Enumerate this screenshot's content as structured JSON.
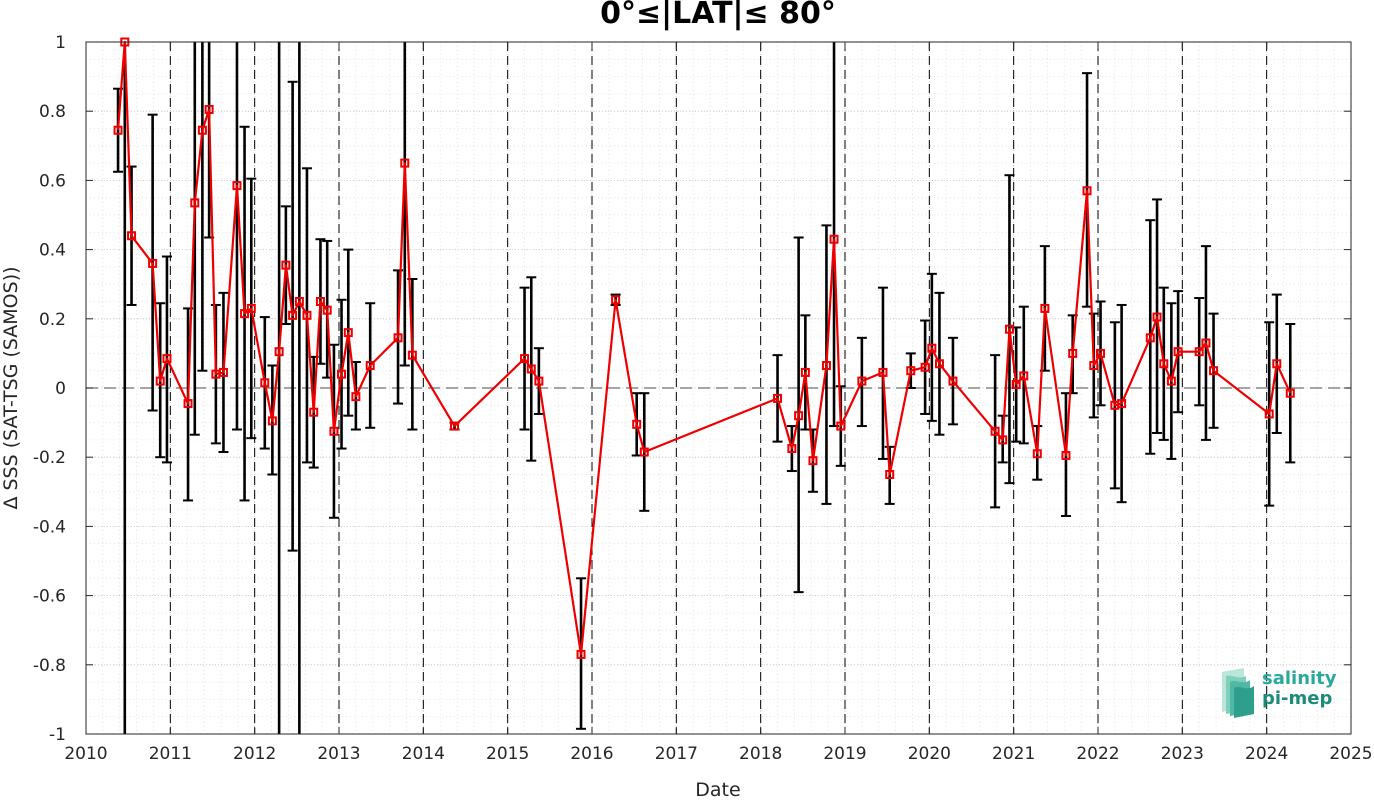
{
  "chart_data": {
    "type": "line",
    "title": "0°≤|LAT|≤ 80°",
    "xlabel": "Date",
    "ylabel": "Δ SSS (SAT-TSG (SAMOS))",
    "xlim": [
      2010,
      2025
    ],
    "ylim": [
      -1,
      1
    ],
    "x_ticks": [
      "2010",
      "2011",
      "2012",
      "2013",
      "2014",
      "2015",
      "2016",
      "2017",
      "2018",
      "2019",
      "2020",
      "2021",
      "2022",
      "2023",
      "2024",
      "2025"
    ],
    "y_ticks": [
      "-1",
      "-0.8",
      "-0.6",
      "-0.4",
      "-0.2",
      "0",
      "0.2",
      "0.4",
      "0.6",
      "0.8",
      "1"
    ],
    "grid": true,
    "zero_line": {
      "y": 0,
      "style": "dashed",
      "color": "#6f6f6f"
    },
    "year_boundaries": [
      2011,
      2012,
      2013,
      2014,
      2015,
      2016,
      2017,
      2018,
      2019,
      2020,
      2021,
      2022,
      2023,
      2024
    ],
    "series": [
      {
        "color": "#ee0000",
        "marker": "square",
        "errorbar_color": "#000000",
        "points": [
          {
            "x": 2010.38,
            "y": 0.745,
            "lo": 0.625,
            "hi": 0.865
          },
          {
            "x": 2010.46,
            "y": 1.0,
            "lo": -1.0,
            "hi": 1.0
          },
          {
            "x": 2010.54,
            "y": 0.44,
            "lo": 0.24,
            "hi": 0.64
          },
          {
            "x": 2010.79,
            "y": 0.36,
            "lo": -0.065,
            "hi": 0.79
          },
          {
            "x": 2010.88,
            "y": 0.02,
            "lo": -0.2,
            "hi": 0.245
          },
          {
            "x": 2010.96,
            "y": 0.085,
            "lo": -0.215,
            "hi": 0.38
          },
          {
            "x": 2011.21,
            "y": -0.045,
            "lo": -0.325,
            "hi": 0.23
          },
          {
            "x": 2011.29,
            "y": 0.535,
            "lo": -0.135,
            "hi": 1.0
          },
          {
            "x": 2011.38,
            "y": 0.745,
            "lo": 0.05,
            "hi": 1.0
          },
          {
            "x": 2011.46,
            "y": 0.805,
            "lo": 0.435,
            "hi": 1.0
          },
          {
            "x": 2011.54,
            "y": 0.04,
            "lo": -0.16,
            "hi": 0.24
          },
          {
            "x": 2011.63,
            "y": 0.045,
            "lo": -0.185,
            "hi": 0.275
          },
          {
            "x": 2011.79,
            "y": 0.585,
            "lo": -0.12,
            "hi": 1.0
          },
          {
            "x": 2011.88,
            "y": 0.215,
            "lo": -0.325,
            "hi": 0.755
          },
          {
            "x": 2011.96,
            "y": 0.23,
            "lo": -0.145,
            "hi": 0.605
          },
          {
            "x": 2012.12,
            "y": 0.015,
            "lo": -0.175,
            "hi": 0.205
          },
          {
            "x": 2012.21,
            "y": -0.095,
            "lo": -0.25,
            "hi": 0.065
          },
          {
            "x": 2012.29,
            "y": 0.105,
            "lo": -1.0,
            "hi": 1.0
          },
          {
            "x": 2012.37,
            "y": 0.355,
            "lo": 0.185,
            "hi": 0.525
          },
          {
            "x": 2012.45,
            "y": 0.21,
            "lo": -0.47,
            "hi": 0.885
          },
          {
            "x": 2012.53,
            "y": 0.25,
            "lo": -1.0,
            "hi": 1.0
          },
          {
            "x": 2012.62,
            "y": 0.21,
            "lo": -0.215,
            "hi": 0.635
          },
          {
            "x": 2012.7,
            "y": -0.07,
            "lo": -0.23,
            "hi": 0.09
          },
          {
            "x": 2012.78,
            "y": 0.25,
            "lo": 0.07,
            "hi": 0.43
          },
          {
            "x": 2012.86,
            "y": 0.225,
            "lo": 0.03,
            "hi": 0.425
          },
          {
            "x": 2012.94,
            "y": -0.125,
            "lo": -0.375,
            "hi": 0.125
          },
          {
            "x": 2013.03,
            "y": 0.04,
            "lo": -0.175,
            "hi": 0.255
          },
          {
            "x": 2013.11,
            "y": 0.16,
            "lo": -0.08,
            "hi": 0.4
          },
          {
            "x": 2013.2,
            "y": -0.025,
            "lo": -0.12,
            "hi": 0.075
          },
          {
            "x": 2013.37,
            "y": 0.065,
            "lo": -0.115,
            "hi": 0.245
          },
          {
            "x": 2013.7,
            "y": 0.145,
            "lo": -0.045,
            "hi": 0.34
          },
          {
            "x": 2013.78,
            "y": 0.65,
            "lo": 0.065,
            "hi": 1.0
          },
          {
            "x": 2013.87,
            "y": 0.095,
            "lo": -0.12,
            "hi": 0.315
          },
          {
            "x": 2014.37,
            "y": -0.11,
            "lo": -0.12,
            "hi": -0.1
          },
          {
            "x": 2015.2,
            "y": 0.085,
            "lo": -0.12,
            "hi": 0.29
          },
          {
            "x": 2015.28,
            "y": 0.055,
            "lo": -0.21,
            "hi": 0.32
          },
          {
            "x": 2015.37,
            "y": 0.02,
            "lo": -0.075,
            "hi": 0.115
          },
          {
            "x": 2015.87,
            "y": -0.77,
            "lo": -0.985,
            "hi": -0.55
          },
          {
            "x": 2016.28,
            "y": 0.255,
            "lo": 0.24,
            "hi": 0.27
          },
          {
            "x": 2016.53,
            "y": -0.105,
            "lo": -0.195,
            "hi": -0.015
          },
          {
            "x": 2016.62,
            "y": -0.185,
            "lo": -0.355,
            "hi": -0.015
          },
          {
            "x": 2018.2,
            "y": -0.03,
            "lo": -0.155,
            "hi": 0.095
          },
          {
            "x": 2018.37,
            "y": -0.175,
            "lo": -0.24,
            "hi": -0.11
          },
          {
            "x": 2018.45,
            "y": -0.08,
            "lo": -0.59,
            "hi": 0.435
          },
          {
            "x": 2018.53,
            "y": 0.045,
            "lo": -0.12,
            "hi": 0.21
          },
          {
            "x": 2018.62,
            "y": -0.21,
            "lo": -0.3,
            "hi": -0.12
          },
          {
            "x": 2018.78,
            "y": 0.065,
            "lo": -0.335,
            "hi": 0.47
          },
          {
            "x": 2018.87,
            "y": 0.43,
            "lo": -0.11,
            "hi": 1.0
          },
          {
            "x": 2018.95,
            "y": -0.11,
            "lo": -0.225,
            "hi": 0.005
          },
          {
            "x": 2019.2,
            "y": 0.02,
            "lo": -0.11,
            "hi": 0.145
          },
          {
            "x": 2019.45,
            "y": 0.045,
            "lo": -0.205,
            "hi": 0.29
          },
          {
            "x": 2019.53,
            "y": -0.25,
            "lo": -0.335,
            "hi": -0.17
          },
          {
            "x": 2019.78,
            "y": 0.05,
            "lo": 0.0,
            "hi": 0.1
          },
          {
            "x": 2019.95,
            "y": 0.06,
            "lo": -0.075,
            "hi": 0.195
          },
          {
            "x": 2020.03,
            "y": 0.115,
            "lo": -0.095,
            "hi": 0.33
          },
          {
            "x": 2020.12,
            "y": 0.07,
            "lo": -0.135,
            "hi": 0.275
          },
          {
            "x": 2020.28,
            "y": 0.02,
            "lo": -0.105,
            "hi": 0.145
          },
          {
            "x": 2020.78,
            "y": -0.125,
            "lo": -0.345,
            "hi": 0.095
          },
          {
            "x": 2020.87,
            "y": -0.15,
            "lo": -0.215,
            "hi": -0.08
          },
          {
            "x": 2020.95,
            "y": 0.17,
            "lo": -0.275,
            "hi": 0.615
          },
          {
            "x": 2021.03,
            "y": 0.01,
            "lo": -0.155,
            "hi": 0.175
          },
          {
            "x": 2021.12,
            "y": 0.035,
            "lo": -0.16,
            "hi": 0.235
          },
          {
            "x": 2021.28,
            "y": -0.19,
            "lo": -0.265,
            "hi": -0.11
          },
          {
            "x": 2021.37,
            "y": 0.23,
            "lo": 0.05,
            "hi": 0.41
          },
          {
            "x": 2021.62,
            "y": -0.195,
            "lo": -0.37,
            "hi": -0.015
          },
          {
            "x": 2021.7,
            "y": 0.1,
            "lo": -0.015,
            "hi": 0.21
          },
          {
            "x": 2021.87,
            "y": 0.57,
            "lo": 0.235,
            "hi": 0.91
          },
          {
            "x": 2021.95,
            "y": 0.065,
            "lo": -0.085,
            "hi": 0.215
          },
          {
            "x": 2022.03,
            "y": 0.1,
            "lo": -0.05,
            "hi": 0.25
          },
          {
            "x": 2022.2,
            "y": -0.05,
            "lo": -0.29,
            "hi": 0.19
          },
          {
            "x": 2022.28,
            "y": -0.045,
            "lo": -0.33,
            "hi": 0.24
          },
          {
            "x": 2022.62,
            "y": 0.145,
            "lo": -0.19,
            "hi": 0.485
          },
          {
            "x": 2022.7,
            "y": 0.205,
            "lo": -0.13,
            "hi": 0.545
          },
          {
            "x": 2022.78,
            "y": 0.07,
            "lo": -0.15,
            "hi": 0.29
          },
          {
            "x": 2022.87,
            "y": 0.02,
            "lo": -0.205,
            "hi": 0.245
          },
          {
            "x": 2022.95,
            "y": 0.105,
            "lo": -0.07,
            "hi": 0.28
          },
          {
            "x": 2023.2,
            "y": 0.105,
            "lo": -0.05,
            "hi": 0.26
          },
          {
            "x": 2023.28,
            "y": 0.13,
            "lo": -0.15,
            "hi": 0.41
          },
          {
            "x": 2023.37,
            "y": 0.05,
            "lo": -0.115,
            "hi": 0.215
          },
          {
            "x": 2024.03,
            "y": -0.075,
            "lo": -0.34,
            "hi": 0.19
          },
          {
            "x": 2024.12,
            "y": 0.07,
            "lo": -0.13,
            "hi": 0.27
          },
          {
            "x": 2024.28,
            "y": -0.015,
            "lo": -0.215,
            "hi": 0.185
          }
        ]
      }
    ]
  },
  "logo": {
    "line1": "salinity",
    "line2": "pi-mep",
    "colors": {
      "text_top": "#2aa99a",
      "text_bottom": "#1e8a7a",
      "wave_light": "#a7e0cf",
      "wave_dark": "#3aa99a"
    }
  }
}
